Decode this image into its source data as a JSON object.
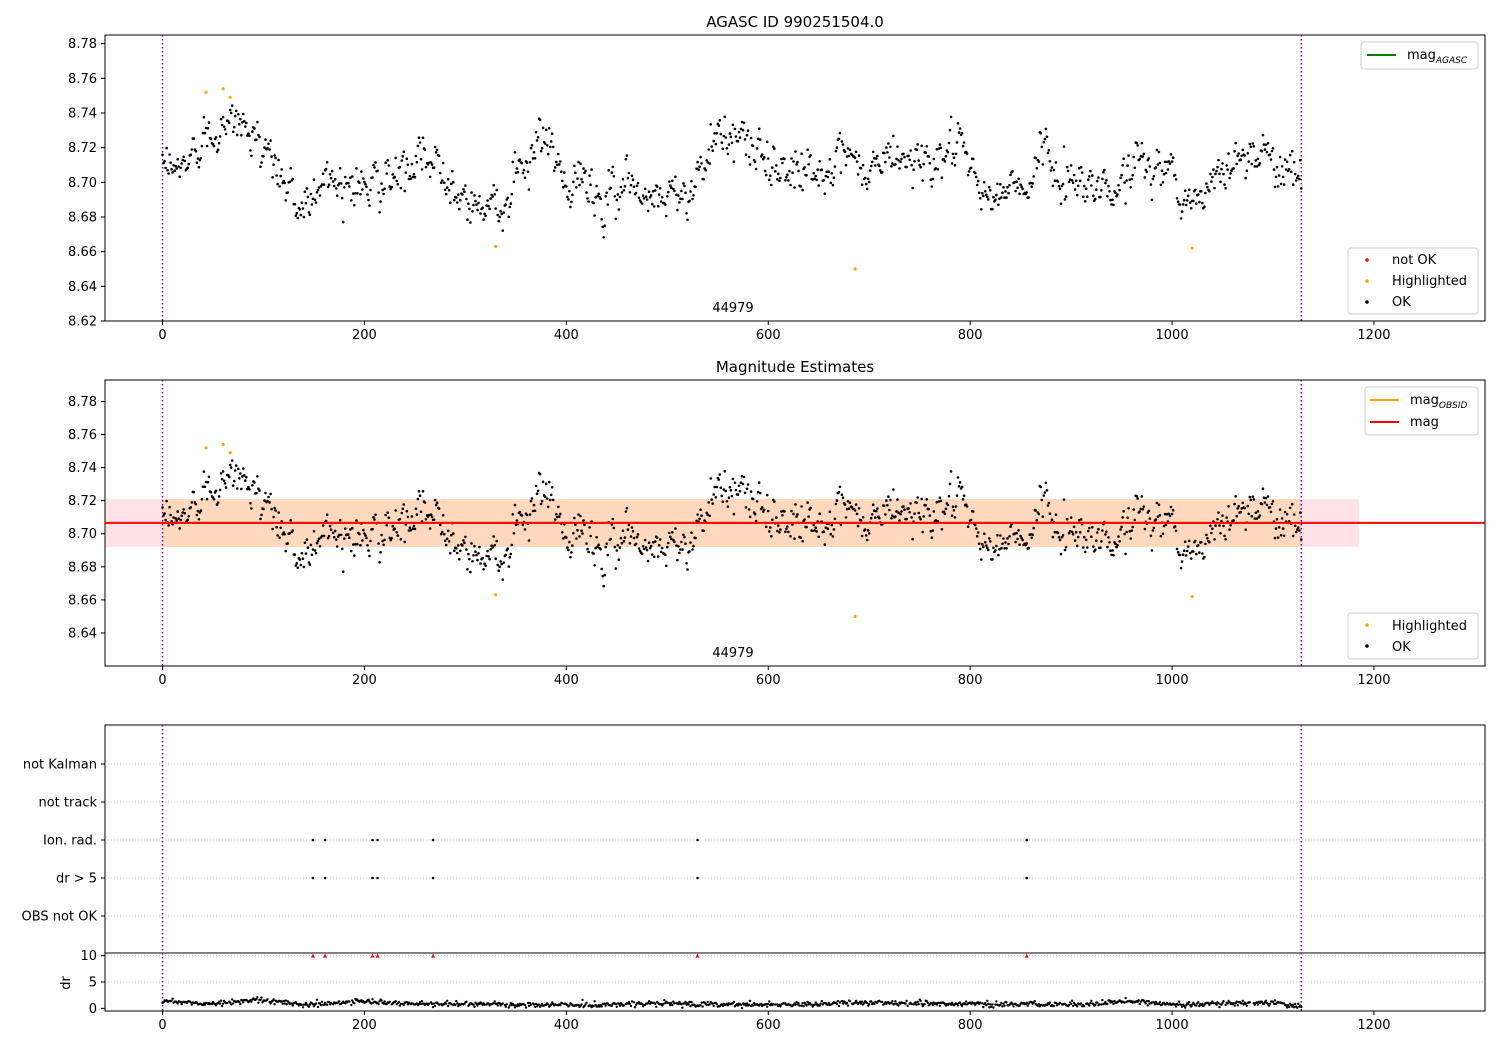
{
  "colors": {
    "ok": "#000000",
    "highlighted": "#ffa500",
    "not_ok": "#ff0000",
    "mag_agasc": "#008000",
    "mag_obsid": "#ffa500",
    "mag": "#ff0000",
    "band": "#ffc0cb",
    "vline": "#800080",
    "grid": "#b0b0b0"
  },
  "chart_data": [
    {
      "type": "scatter",
      "title": "AGASC ID 990251504.0",
      "annotation": "44979",
      "xlim": [
        -57,
        1310
      ],
      "ylim": [
        8.62,
        8.785
      ],
      "xticks": [
        0,
        200,
        400,
        600,
        800,
        1000,
        1200
      ],
      "yticks": [
        8.62,
        8.64,
        8.66,
        8.68,
        8.7,
        8.72,
        8.74,
        8.76,
        8.78
      ],
      "vlines": [
        0,
        1128
      ],
      "legend_lines": [
        {
          "label": "mag",
          "sub": "AGASC",
          "color": "#008000"
        }
      ],
      "legend_points": [
        {
          "label": "not OK",
          "color": "#ff0000"
        },
        {
          "label": "Highlighted",
          "color": "#ffa500"
        },
        {
          "label": "OK",
          "color": "#000000"
        }
      ],
      "highlighted_points": [
        [
          43,
          8.752
        ],
        [
          60,
          8.754
        ],
        [
          67,
          8.749
        ],
        [
          330,
          8.663
        ],
        [
          686,
          8.65
        ],
        [
          1020,
          8.662
        ]
      ],
      "ok_trend": [
        [
          0,
          8.706
        ],
        [
          20,
          8.708
        ],
        [
          40,
          8.726
        ],
        [
          60,
          8.736
        ],
        [
          80,
          8.732
        ],
        [
          100,
          8.722
        ],
        [
          110,
          8.712
        ],
        [
          120,
          8.7
        ],
        [
          135,
          8.683
        ],
        [
          150,
          8.697
        ],
        [
          175,
          8.703
        ],
        [
          200,
          8.698
        ],
        [
          230,
          8.702
        ],
        [
          260,
          8.71
        ],
        [
          280,
          8.712
        ],
        [
          300,
          8.685
        ],
        [
          320,
          8.689
        ],
        [
          340,
          8.69
        ],
        [
          360,
          8.708
        ],
        [
          380,
          8.728
        ],
        [
          400,
          8.693
        ],
        [
          420,
          8.703
        ],
        [
          440,
          8.683
        ],
        [
          460,
          8.708
        ],
        [
          480,
          8.688
        ],
        [
          500,
          8.695
        ],
        [
          520,
          8.694
        ],
        [
          540,
          8.718
        ],
        [
          560,
          8.726
        ],
        [
          580,
          8.722
        ],
        [
          600,
          8.712
        ],
        [
          640,
          8.707
        ],
        [
          680,
          8.71
        ],
        [
          700,
          8.705
        ],
        [
          720,
          8.715
        ],
        [
          760,
          8.712
        ],
        [
          780,
          8.722
        ],
        [
          800,
          8.708
        ],
        [
          820,
          8.688
        ],
        [
          840,
          8.698
        ],
        [
          860,
          8.695
        ],
        [
          875,
          8.728
        ],
        [
          890,
          8.696
        ],
        [
          910,
          8.705
        ],
        [
          940,
          8.694
        ],
        [
          970,
          8.714
        ],
        [
          990,
          8.71
        ],
        [
          1010,
          8.694
        ],
        [
          1030,
          8.688
        ],
        [
          1050,
          8.709
        ],
        [
          1070,
          8.718
        ],
        [
          1090,
          8.716
        ],
        [
          1110,
          8.713
        ],
        [
          1128,
          8.703
        ]
      ],
      "ok_scatter_sd": 0.008,
      "ok_n": 1128
    },
    {
      "type": "scatter",
      "title": "Magnitude Estimates",
      "annotation": "44979",
      "xlim": [
        -57,
        1310
      ],
      "ylim": [
        8.62,
        8.793
      ],
      "xticks": [
        0,
        200,
        400,
        600,
        800,
        1000,
        1200
      ],
      "yticks": [
        8.64,
        8.66,
        8.68,
        8.7,
        8.72,
        8.74,
        8.76,
        8.78
      ],
      "vlines": [
        0,
        1128
      ],
      "mag_line": {
        "value": 8.7066,
        "x": [
          -57,
          1310
        ]
      },
      "obsid_line": {
        "value": 8.7066,
        "x": [
          0,
          1128
        ]
      },
      "band": {
        "low": 8.692,
        "high": 8.721,
        "x": [
          -57,
          1185
        ]
      },
      "legend_lines": [
        {
          "label": "mag",
          "sub": "OBSID",
          "color": "#ffa500"
        },
        {
          "label": "mag",
          "sub": "",
          "color": "#ff0000"
        }
      ],
      "legend_points": [
        {
          "label": "Highlighted",
          "color": "#ffa500"
        },
        {
          "label": "OK",
          "color": "#000000"
        }
      ],
      "highlighted_points": [
        [
          43,
          8.752
        ],
        [
          60,
          8.754
        ],
        [
          67,
          8.749
        ],
        [
          330,
          8.663
        ],
        [
          686,
          8.65
        ],
        [
          1020,
          8.662
        ]
      ]
    },
    {
      "type": "scatter",
      "title": "",
      "xlim": [
        -57,
        1310
      ],
      "categories": [
        "not Kalman",
        "not track",
        "Ion. rad.",
        "dr > 5",
        "OBS not OK"
      ],
      "vlines": [
        0,
        1128
      ],
      "flags": {
        "Ion. rad.": [
          149,
          161,
          208,
          213,
          268,
          530,
          856
        ],
        "dr > 5": [
          149,
          161,
          208,
          213,
          268,
          530,
          856
        ]
      }
    },
    {
      "type": "scatter",
      "title": "",
      "ylabel": "dr",
      "xlim": [
        -57,
        1310
      ],
      "ylim": [
        -0.5,
        10.5
      ],
      "xticks": [
        0,
        200,
        400,
        600,
        800,
        1000,
        1200
      ],
      "yticks": [
        0,
        5,
        10
      ],
      "vlines": [
        0,
        1128
      ],
      "outlier_markers": [
        149,
        161,
        208,
        213,
        268,
        530,
        856
      ],
      "dr_trend": [
        [
          0,
          1.4
        ],
        [
          50,
          0.9
        ],
        [
          100,
          1.6
        ],
        [
          140,
          0.7
        ],
        [
          200,
          1.3
        ],
        [
          240,
          0.9
        ],
        [
          300,
          0.8
        ],
        [
          400,
          0.6
        ],
        [
          500,
          0.9
        ],
        [
          600,
          0.7
        ],
        [
          700,
          1.1
        ],
        [
          800,
          0.8
        ],
        [
          900,
          0.7
        ],
        [
          960,
          1.3
        ],
        [
          1000,
          0.8
        ],
        [
          1100,
          1.0
        ],
        [
          1128,
          0.4
        ]
      ]
    }
  ]
}
